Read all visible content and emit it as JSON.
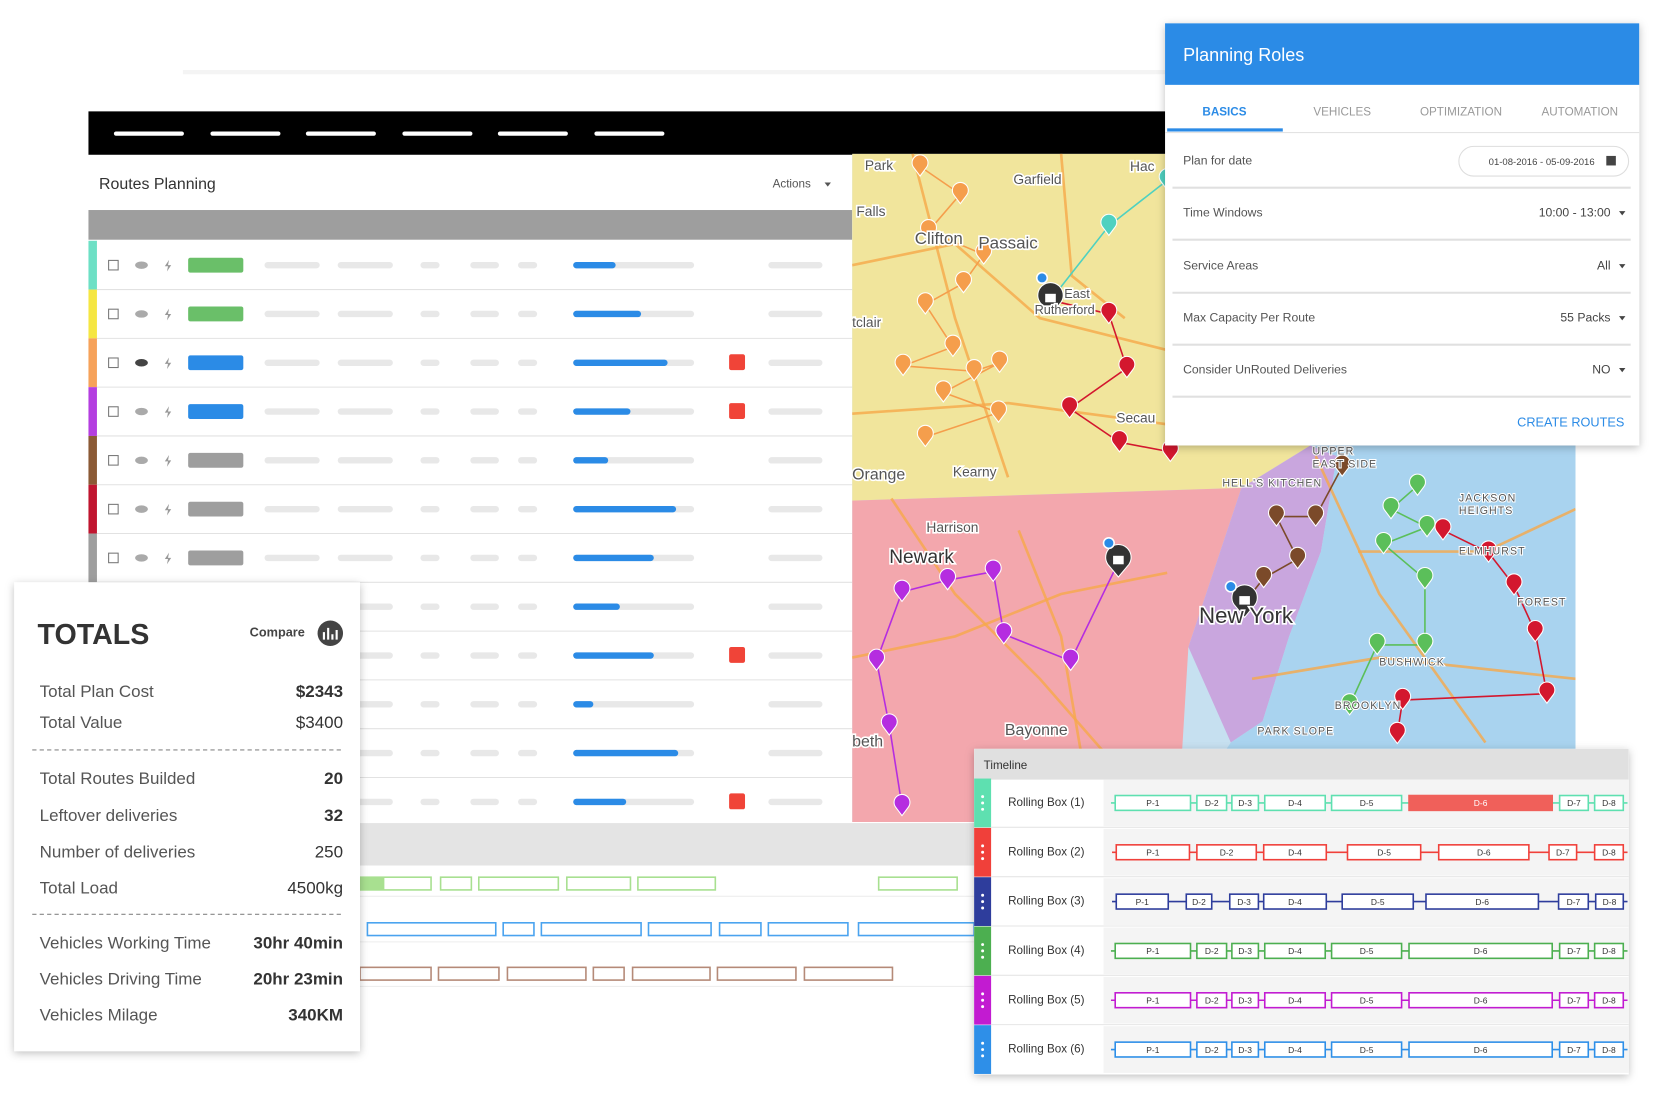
{
  "header": {
    "title": "Routes Planning",
    "actions": "Actions"
  },
  "planning": {
    "title": "Planning Roles",
    "tabs": [
      "BASICS",
      "VEHICLES",
      "OPTIMIZATION",
      "AUTOMATION"
    ],
    "fields": [
      {
        "label": "Plan for date",
        "value": "01-08-2016 - 05-09-2016"
      },
      {
        "label": "Time Windows",
        "value": "10:00 - 13:00"
      },
      {
        "label": "Service Areas",
        "value": "All"
      },
      {
        "label": "Max Capacity Per Route",
        "value": "55 Packs"
      },
      {
        "label": "Consider UnRouted Deliveries",
        "value": "NO"
      }
    ],
    "button": "CREATE ROUTES"
  },
  "totals": {
    "title": "TOTALS",
    "compare": "Compare",
    "rows": [
      {
        "label": "Total Plan Cost",
        "value": "$2343"
      },
      {
        "label": "Total Value",
        "value": "$3400"
      },
      {
        "label": "Total Routes Builded",
        "value": "20"
      },
      {
        "label": "Leftover deliveries",
        "value": "32"
      },
      {
        "label": "Number of deliveries",
        "value": "250"
      },
      {
        "label": "Total Load",
        "value": "4500kg"
      },
      {
        "label": "Vehicles Working Time",
        "value": "30hr 40min"
      },
      {
        "label": "Vehicles Driving Time",
        "value": "20hr 23min"
      },
      {
        "label": "Vehicles Milage",
        "value": "340KM"
      }
    ]
  },
  "map": {
    "labels": [
      "Park",
      "Garfield",
      "Hac",
      "Falls",
      "Clifton",
      "Passaic",
      "East",
      "Rutherford",
      "tclair",
      "Orange",
      "Kearny",
      "Harrison",
      "Newark",
      "Secau",
      "New York",
      "HELL'S KITCHEN",
      "UPPER",
      "EAST SIDE",
      "JACKSON",
      "HEIGHTS",
      "ELMHURST",
      "FOREST",
      "BUSHWICK",
      "BROOKLYN",
      "PARK SLOPE",
      "Bayonne",
      "beth"
    ]
  },
  "timeline": {
    "title": "Timeline",
    "rows": [
      {
        "name": "Rolling Box (1)",
        "segments": [
          "P-1",
          "D-2",
          "D-3",
          "D-4",
          "D-5",
          "D-6",
          "D-7",
          "D-8"
        ]
      },
      {
        "name": "Rolling Box (2)",
        "segments": [
          "P-1",
          "D-2",
          "D-4",
          "D-5",
          "D-6",
          "D-7",
          "D-8"
        ]
      },
      {
        "name": "Rolling Box (3)",
        "segments": [
          "P-1",
          "D-2",
          "D-3",
          "D-4",
          "D-5",
          "D-6",
          "D-7",
          "D-8"
        ]
      },
      {
        "name": "Rolling Box (4)",
        "segments": [
          "P-1",
          "D-2",
          "D-3",
          "D-4",
          "D-5",
          "D-6",
          "D-7",
          "D-8"
        ]
      },
      {
        "name": "Rolling Box (5)",
        "segments": [
          "P-1",
          "D-2",
          "D-3",
          "D-4",
          "D-5",
          "D-6",
          "D-7",
          "D-8"
        ]
      },
      {
        "name": "Rolling Box (6)",
        "segments": [
          "P-1",
          "D-2",
          "D-3",
          "D-4",
          "D-5",
          "D-6",
          "D-7",
          "D-8"
        ]
      }
    ]
  }
}
